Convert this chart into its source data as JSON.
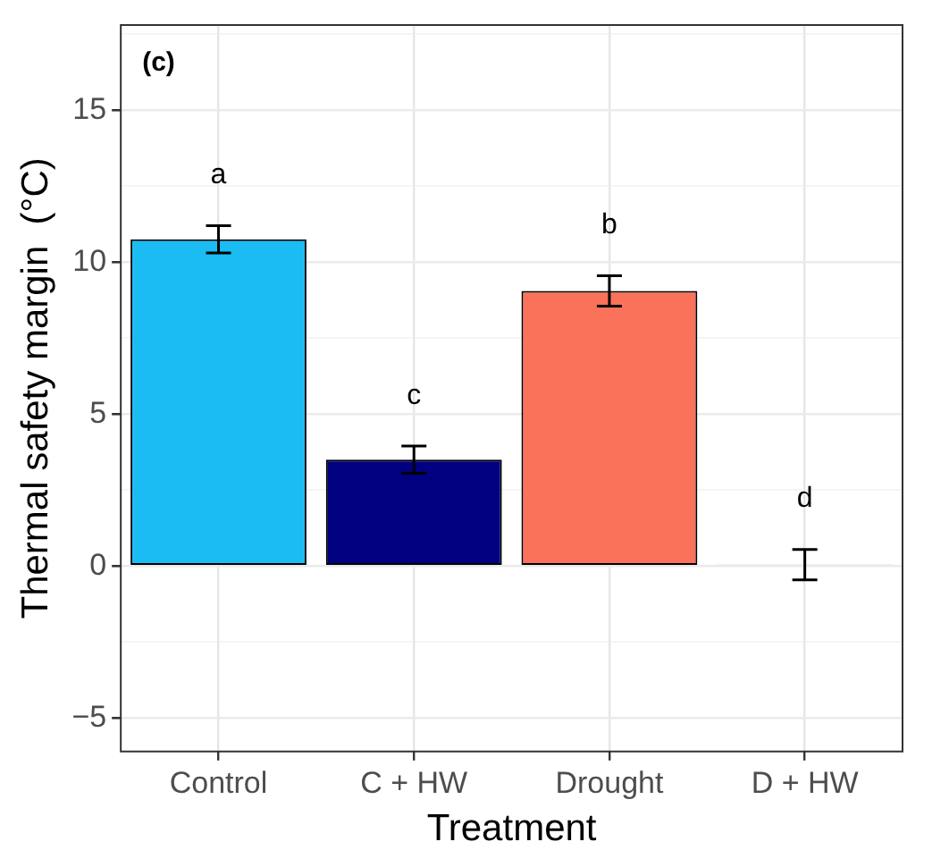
{
  "chart_data": {
    "type": "bar",
    "xlabel": "Treatment",
    "ylabel": "Thermal safety margin  (°C)",
    "categories": [
      "Control",
      "C + HW",
      "Drought",
      "D + HW"
    ],
    "values": [
      10.75,
      3.5,
      9.05,
      0.05
    ],
    "colors": [
      "#1bbcf3",
      "#000080",
      "#fa7259",
      "#000000"
    ],
    "value_labels": [
      "a",
      "c",
      "b",
      "d"
    ],
    "errors": [
      0.45,
      0.45,
      0.5,
      0.5
    ],
    "ylim": [
      -6.1,
      17.8
    ],
    "yticks": [
      {
        "value": -5,
        "label": "−5"
      },
      {
        "value": -2.5,
        "label": null
      },
      0,
      {
        "value": 2.5,
        "label": null
      },
      5,
      {
        "value": 7.5,
        "label": null
      },
      10,
      {
        "value": 12.5,
        "label": null
      },
      15,
      {
        "value": 17.5,
        "label": null
      }
    ],
    "grid": true,
    "annotations": [
      "(c)"
    ]
  }
}
